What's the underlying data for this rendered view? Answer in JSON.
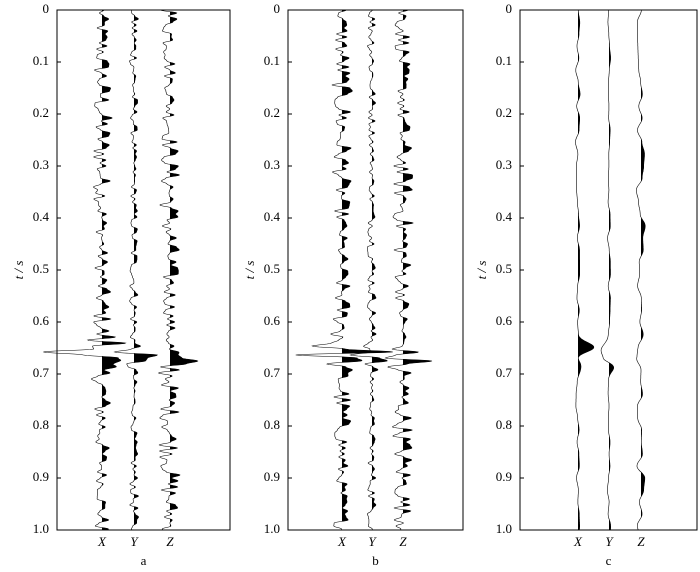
{
  "chart_data": [
    {
      "type": "wiggle",
      "xlabel": "a",
      "ylabel": "t / s",
      "categories": [
        "X",
        "Y",
        "Z"
      ],
      "ylim": [
        0,
        1
      ],
      "yticks": [
        0,
        0.1,
        0.2,
        0.3,
        0.4,
        0.5,
        0.6,
        0.7,
        0.8,
        0.9,
        {
          "value": 1,
          "label": "1.0"
        }
      ]
    },
    {
      "type": "wiggle",
      "xlabel": "b",
      "ylabel": "t / s",
      "categories": [
        "X",
        "Y",
        "Z"
      ],
      "ylim": [
        0,
        1
      ],
      "yticks": [
        0,
        0.1,
        0.2,
        0.3,
        0.4,
        0.5,
        0.6,
        0.7,
        0.8,
        0.9,
        {
          "value": 1,
          "label": "1.0"
        }
      ]
    },
    {
      "type": "wiggle",
      "xlabel": "c",
      "ylabel": "t / s",
      "categories": [
        "X",
        "Y",
        "Z"
      ],
      "ylim": [
        0,
        1
      ],
      "yticks": [
        0,
        0.1,
        0.2,
        0.3,
        0.4,
        0.5,
        0.6,
        0.7,
        0.8,
        0.9,
        {
          "value": 1,
          "label": "1.0"
        }
      ]
    }
  ]
}
